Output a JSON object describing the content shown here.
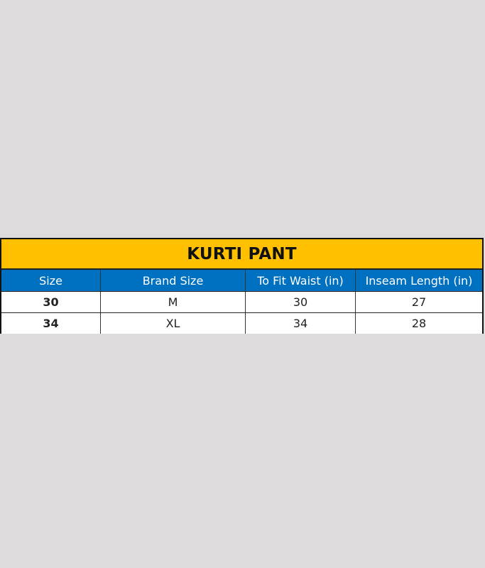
{
  "table": {
    "title": "KURTI PANT",
    "colors": {
      "title_bg": "#ffc000",
      "header_bg": "#0070c0"
    },
    "headers": [
      "Size",
      "Brand Size",
      "To Fit Waist (in)",
      "Inseam Length (in)"
    ],
    "rows": [
      [
        "30",
        "M",
        "30",
        "27"
      ],
      [
        "34",
        "XL",
        "34",
        "28"
      ]
    ]
  }
}
